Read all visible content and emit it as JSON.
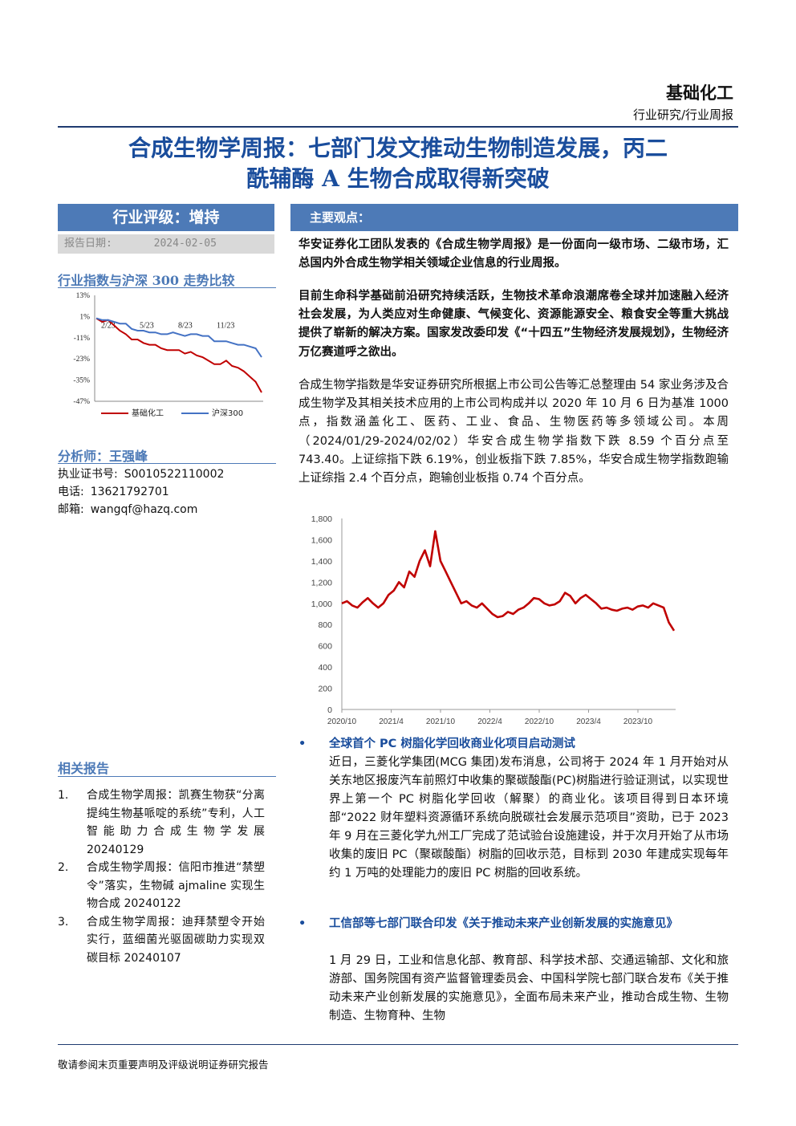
{
  "header": {
    "sector": "基础化工",
    "report_type": "行业研究/行业周报"
  },
  "title": {
    "line1": "合成生物学周报：七部门发文推动生物制造发展，丙二",
    "line2": "酰辅酶 A 生物合成取得新突破"
  },
  "rating": {
    "label": "行业评级：增持",
    "date_label": "报告日期:",
    "date": "2024-02-05"
  },
  "trend_chart_section": {
    "title": "行业指数与沪深 300 走势比较"
  },
  "mini_chart": {
    "chart_data": {
      "type": "line",
      "y_ticks": [
        "13%",
        "1%",
        "-11%",
        "-23%",
        "-35%",
        "-47%"
      ],
      "ylim": [
        -47,
        13
      ],
      "x_ticks": [
        "2/23",
        "5/23",
        "8/23",
        "11/23"
      ],
      "series": [
        {
          "name": "基础化工",
          "color": "#c00000",
          "values": [
            0,
            -2,
            -1,
            -4,
            -7,
            -9,
            -12,
            -12,
            -14,
            -15,
            -15,
            -17,
            -18,
            -18,
            -18,
            -20,
            -19,
            -21,
            -22,
            -24,
            -26,
            -26,
            -24,
            -27,
            -28,
            -30,
            -33,
            -36,
            -42
          ]
        },
        {
          "name": "沪深300",
          "color": "#4472c4",
          "values": [
            0,
            -1,
            -1,
            -2,
            -3,
            -3,
            -6,
            -7,
            -7,
            -8,
            -8,
            -9,
            -9,
            -8,
            -9,
            -10,
            -9,
            -9,
            -10,
            -10,
            -13,
            -13,
            -13,
            -14,
            -15,
            -15,
            -16,
            -17,
            -22
          ]
        }
      ]
    }
  },
  "analyst": {
    "title": "分析师：王强峰",
    "license_label": "执业证书号:",
    "license": "S0010522110002",
    "phone_label": "电话:",
    "phone": "13621792701",
    "email_label": "邮箱:",
    "email": "wangqf@hazq.com"
  },
  "related": {
    "title": "相关报告",
    "items": [
      {
        "num": "1.",
        "text": "合成生物学周报：凯赛生物获“分离提纯生物基哌啶的系统”专利，人工智能助力合成生物学发展 20240129"
      },
      {
        "num": "2.",
        "text": "合成生物学周报：信阳市推进“禁塑令”落实，生物碱 ajmaline 实现生物合成 20240122"
      },
      {
        "num": "3.",
        "text": "合成生物学周报：迪拜禁塑令开始实行，蓝细菌光驱固碳助力实现双碳目标 20240107"
      }
    ]
  },
  "views": {
    "header": "主要观点：",
    "p1": "华安证券化工团队发表的《合成生物学周报》是一份面向一级市场、二级市场，汇总国内外合成生物学相关领域企业信息的行业周报。",
    "p2": "目前生命科学基础前沿研究持续活跃，生物技术革命浪潮席卷全球并加速融入经济社会发展，为人类应对生命健康、气候变化、资源能源安全、粮食安全等重大挑战提供了崭新的解决方案。国家发改委印发《“十四五”生物经济发展规划》，生物经济万亿赛道呼之欲出。",
    "p3": "合成生物学指数是华安证券研究所根据上市公司公告等汇总整理由 54 家业务涉及合成生物学及其相关技术应用的上市公司构成并以 2020 年 10 月 6 日为基准 1000 点，指数涵盖化工、医药、工业、食品、生物医药等多领域公司。本周（2024/01/29-2024/02/02）华安合成生物学指数下跌 8.59 个百分点至 743.40。上证综指下跌 6.19%，创业板指下跌 7.85%，华安合成生物学指数跑输上证综指 2.4 个百分点，跑输创业板指 0.74 个百分点。"
  },
  "index_chart": {
    "chart_data": {
      "type": "line",
      "y_ticks": [
        "1,800",
        "1,600",
        "1,400",
        "1,200",
        "1,000",
        "800",
        "600",
        "400",
        "200",
        "0"
      ],
      "ylim": [
        0,
        1800
      ],
      "x_ticks": [
        "2020/10",
        "2021/4",
        "2021/10",
        "2022/4",
        "2022/10",
        "2023/4",
        "2023/10"
      ],
      "series": [
        {
          "color": "#c00000",
          "values": [
            1000,
            1020,
            980,
            960,
            1010,
            1050,
            1000,
            960,
            1000,
            1080,
            1120,
            1200,
            1150,
            1300,
            1250,
            1400,
            1500,
            1350,
            1680,
            1400,
            1300,
            1200,
            1100,
            1000,
            1020,
            980,
            960,
            1000,
            950,
            900,
            870,
            880,
            920,
            900,
            940,
            960,
            1000,
            1050,
            1040,
            1000,
            980,
            990,
            1020,
            1100,
            1070,
            1000,
            1050,
            1080,
            1040,
            1000,
            950,
            960,
            940,
            930,
            950,
            960,
            940,
            970,
            980,
            960,
            1000,
            980,
            960,
            820,
            743
          ]
        }
      ]
    }
  },
  "news": [
    {
      "heading": "全球首个 PC 树脂化学回收商业化项目启动测试",
      "body": "近日，三菱化学集团(MCG 集团)发布消息，公司将于 2024 年 1 月开始对从关东地区报废汽车前照灯中收集的聚碳酸酯(PC)树脂进行验证测试，以实现世界上第一个 PC 树脂化学回收（解聚）的商业化。该项目得到日本环境部“2022 财年塑料资源循环系统向脱碳社会发展示范项目”资助，已于 2023 年 9 月在三菱化学九州工厂完成了范试验台设施建设，并于次月开始了从市场收集的废旧 PC（聚碳酸酯）树脂的回收示范，目标到 2030 年建成实现每年约 1 万吨的处理能力的废旧 PC 树脂的回收系统。"
    },
    {
      "heading": "工信部等七部门联合印发《关于推动未来产业创新发展的实施意见》",
      "body": "1 月 29 日，工业和信息化部、教育部、科学技术部、交通运输部、文化和旅游部、国务院国有资产监督管理委员会、中国科学院七部门联合发布《关于推动未来产业创新发展的实施意见》，全面布局未来产业，推动合成生物、生物制造、生物育种、生物"
    }
  ],
  "footer": {
    "disclaimer": "敬请参阅末页重要声明及评级说明证券研究报告"
  }
}
